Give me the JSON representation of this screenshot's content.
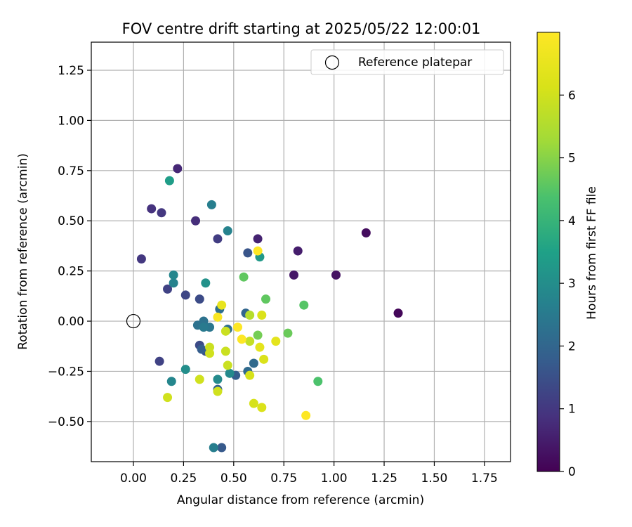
{
  "chart_data": {
    "type": "scatter",
    "title": "FOV centre drift starting at 2025/05/22 12:00:01",
    "xlabel": "Angular distance from reference (arcmin)",
    "ylabel": "Rotation from reference (arcmin)",
    "xlim": [
      -0.21,
      1.88
    ],
    "ylim": [
      -0.7,
      1.39
    ],
    "xticks": [
      0.0,
      0.25,
      0.5,
      0.75,
      1.0,
      1.25,
      1.5,
      1.75
    ],
    "xtick_labels": [
      "0.00",
      "0.25",
      "0.50",
      "0.75",
      "1.00",
      "1.25",
      "1.50",
      "1.75"
    ],
    "yticks": [
      -0.5,
      -0.25,
      0.0,
      0.25,
      0.5,
      0.75,
      1.0,
      1.25
    ],
    "ytick_labels": [
      "−0.50",
      "−0.25",
      "0.00",
      "0.25",
      "0.50",
      "0.75",
      "1.00",
      "1.25"
    ],
    "grid": true,
    "legend": {
      "placement": "top-right",
      "entries": [
        "Reference platepar"
      ]
    },
    "reference_point": {
      "x": 0.0,
      "y": 0.0
    },
    "colorbar": {
      "label": "Hours from first FF file",
      "range": [
        0,
        7
      ],
      "ticks": [
        0,
        1,
        2,
        3,
        4,
        5,
        6
      ],
      "tick_labels": [
        "0",
        "1",
        "2",
        "3",
        "4",
        "5",
        "6"
      ],
      "colormap": "viridis"
    },
    "points": [
      {
        "x": 1.32,
        "y": 0.04,
        "h": 0.1
      },
      {
        "x": 1.16,
        "y": 0.44,
        "h": 0.2
      },
      {
        "x": 1.01,
        "y": 0.23,
        "h": 0.3
      },
      {
        "x": 0.8,
        "y": 0.23,
        "h": 0.4
      },
      {
        "x": 0.82,
        "y": 0.35,
        "h": 0.5
      },
      {
        "x": 0.62,
        "y": 0.41,
        "h": 0.6
      },
      {
        "x": 0.22,
        "y": 0.76,
        "h": 0.7
      },
      {
        "x": 0.31,
        "y": 0.5,
        "h": 0.8
      },
      {
        "x": 0.09,
        "y": 0.56,
        "h": 0.9
      },
      {
        "x": 0.14,
        "y": 0.54,
        "h": 1.0
      },
      {
        "x": 0.04,
        "y": 0.31,
        "h": 1.0
      },
      {
        "x": 0.42,
        "y": 0.41,
        "h": 1.1
      },
      {
        "x": 0.17,
        "y": 0.16,
        "h": 1.2
      },
      {
        "x": 0.13,
        "y": -0.2,
        "h": 1.2
      },
      {
        "x": 0.26,
        "y": 0.13,
        "h": 1.3
      },
      {
        "x": 0.33,
        "y": 0.11,
        "h": 1.4
      },
      {
        "x": 0.33,
        "y": -0.12,
        "h": 1.4
      },
      {
        "x": 0.36,
        "y": -0.15,
        "h": 1.5
      },
      {
        "x": 0.57,
        "y": 0.34,
        "h": 1.6
      },
      {
        "x": 0.44,
        "y": -0.63,
        "h": 1.7
      },
      {
        "x": 0.51,
        "y": -0.27,
        "h": 1.8
      },
      {
        "x": 0.34,
        "y": -0.14,
        "h": 1.8
      },
      {
        "x": 0.42,
        "y": -0.34,
        "h": 1.9
      },
      {
        "x": 0.56,
        "y": 0.04,
        "h": 2.0
      },
      {
        "x": 0.6,
        "y": -0.21,
        "h": 2.1
      },
      {
        "x": 0.57,
        "y": -0.25,
        "h": 2.1
      },
      {
        "x": 0.43,
        "y": 0.06,
        "h": 2.2
      },
      {
        "x": 0.47,
        "y": -0.04,
        "h": 2.2
      },
      {
        "x": 0.35,
        "y": 0.0,
        "h": 2.3
      },
      {
        "x": 0.32,
        "y": -0.02,
        "h": 2.3
      },
      {
        "x": 0.38,
        "y": -0.03,
        "h": 2.4
      },
      {
        "x": 0.35,
        "y": -0.03,
        "h": 2.5
      },
      {
        "x": 0.4,
        "y": -0.63,
        "h": 2.6
      },
      {
        "x": 0.39,
        "y": 0.58,
        "h": 2.6
      },
      {
        "x": 0.47,
        "y": 0.45,
        "h": 2.7
      },
      {
        "x": 0.2,
        "y": 0.19,
        "h": 2.7
      },
      {
        "x": 0.2,
        "y": 0.23,
        "h": 2.8
      },
      {
        "x": 0.19,
        "y": -0.3,
        "h": 2.8
      },
      {
        "x": 0.42,
        "y": -0.29,
        "h": 2.9
      },
      {
        "x": 0.48,
        "y": -0.26,
        "h": 2.9
      },
      {
        "x": 0.26,
        "y": -0.24,
        "h": 3.0
      },
      {
        "x": 0.36,
        "y": 0.19,
        "h": 3.1
      },
      {
        "x": 0.63,
        "y": 0.32,
        "h": 3.3
      },
      {
        "x": 0.18,
        "y": 0.7,
        "h": 3.4
      },
      {
        "x": 0.92,
        "y": -0.3,
        "h": 4.4
      },
      {
        "x": 0.85,
        "y": 0.08,
        "h": 4.5
      },
      {
        "x": 0.55,
        "y": 0.22,
        "h": 4.6
      },
      {
        "x": 0.66,
        "y": 0.11,
        "h": 4.6
      },
      {
        "x": 0.77,
        "y": -0.06,
        "h": 4.7
      },
      {
        "x": 0.62,
        "y": -0.07,
        "h": 4.8
      },
      {
        "x": 0.58,
        "y": 0.03,
        "h": 5.6
      },
      {
        "x": 0.58,
        "y": -0.1,
        "h": 5.8
      },
      {
        "x": 0.46,
        "y": -0.05,
        "h": 5.9
      },
      {
        "x": 0.46,
        "y": -0.15,
        "h": 5.9
      },
      {
        "x": 0.47,
        "y": -0.22,
        "h": 5.9
      },
      {
        "x": 0.38,
        "y": -0.13,
        "h": 5.9
      },
      {
        "x": 0.38,
        "y": -0.16,
        "h": 6.0
      },
      {
        "x": 0.33,
        "y": -0.29,
        "h": 6.0
      },
      {
        "x": 0.42,
        "y": -0.35,
        "h": 6.0
      },
      {
        "x": 0.17,
        "y": -0.38,
        "h": 6.0
      },
      {
        "x": 0.58,
        "y": -0.27,
        "h": 6.1
      },
      {
        "x": 0.6,
        "y": -0.41,
        "h": 6.1
      },
      {
        "x": 0.64,
        "y": -0.43,
        "h": 6.2
      },
      {
        "x": 0.64,
        "y": 0.03,
        "h": 6.2
      },
      {
        "x": 0.65,
        "y": -0.19,
        "h": 6.2
      },
      {
        "x": 0.63,
        "y": -0.13,
        "h": 6.4
      },
      {
        "x": 0.71,
        "y": -0.1,
        "h": 6.4
      },
      {
        "x": 0.44,
        "y": 0.08,
        "h": 6.5
      },
      {
        "x": 0.42,
        "y": 0.02,
        "h": 6.9
      },
      {
        "x": 0.52,
        "y": -0.03,
        "h": 7.0
      },
      {
        "x": 0.54,
        "y": -0.09,
        "h": 7.0
      },
      {
        "x": 0.62,
        "y": 0.35,
        "h": 7.0
      },
      {
        "x": 0.86,
        "y": -0.47,
        "h": 7.0
      }
    ]
  }
}
